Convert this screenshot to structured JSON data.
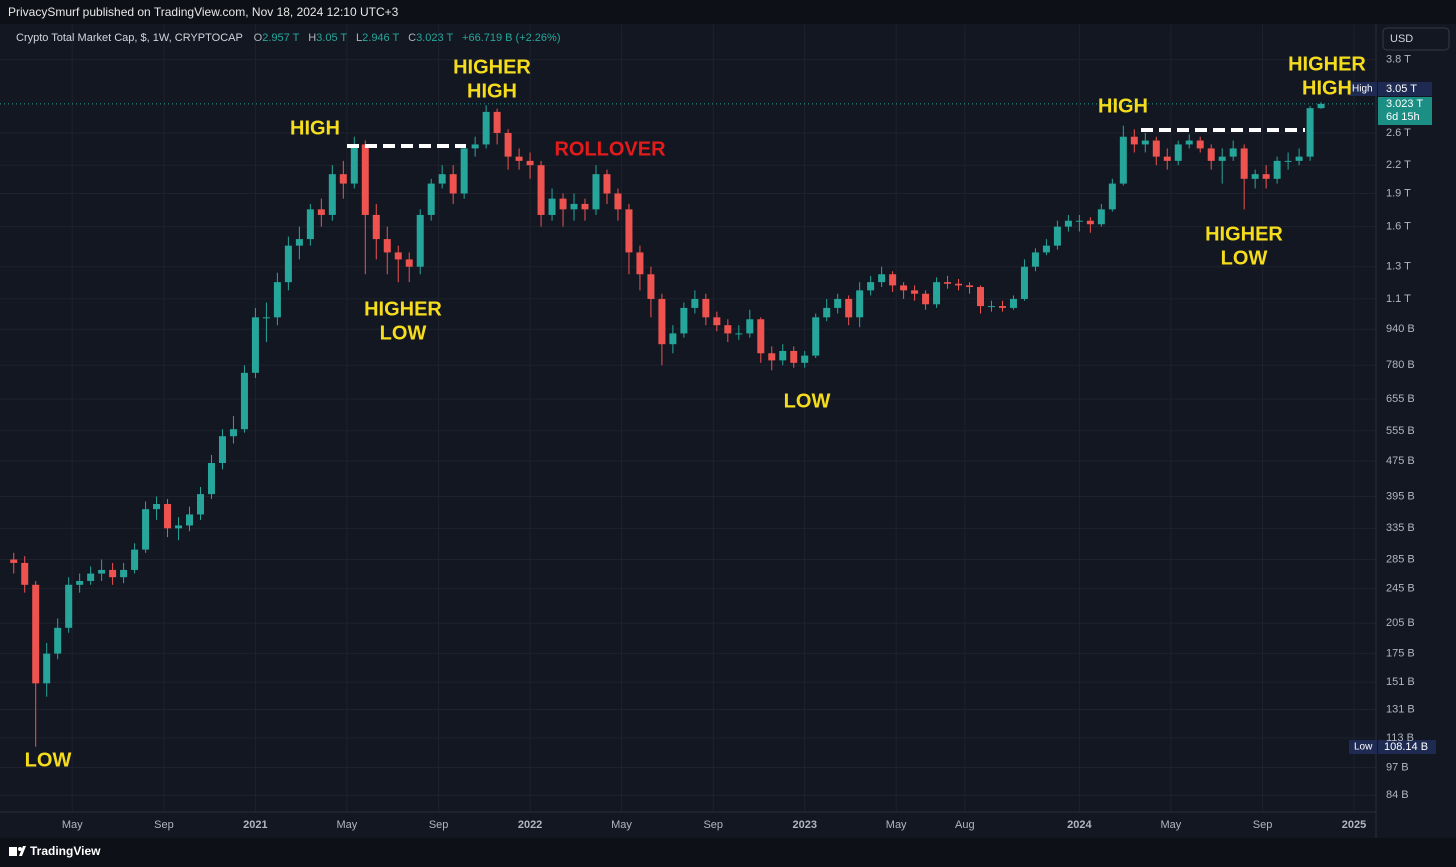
{
  "header": {
    "publisher": "PrivacySmurf published on TradingView.com, Nov 18, 2024 12:10 UTC+3",
    "currency": "USD",
    "brand": "TradingView"
  },
  "legend": {
    "symbol": "Crypto Total Market Cap, $, 1W, CRYPTOCAP",
    "ohlc": [
      {
        "label": "O",
        "value": "2.957 T"
      },
      {
        "label": "H",
        "value": "3.05 T"
      },
      {
        "label": "L",
        "value": "2.946 T"
      },
      {
        "label": "C",
        "value": "3.023 T"
      }
    ],
    "change": "+66.719 B (+2.26%)"
  },
  "price_badges": {
    "high_label": "High",
    "high_value": "3.05 T",
    "last_value": "3.023 T",
    "countdown": "6d 15h",
    "low_label": "Low",
    "low_value": "108.14 B"
  },
  "chart_data": {
    "type": "candlestick",
    "log_scale": true,
    "grid": true,
    "up_color": "#26a69a",
    "down_color": "#ef5350",
    "xlim": [
      2020.07,
      2025.08
    ],
    "ylim": [
      77,
      4550
    ],
    "xticks": [
      {
        "value": 2020.333,
        "label": "May"
      },
      {
        "value": 2020.667,
        "label": "Sep"
      },
      2021,
      {
        "value": 2021.333,
        "label": "May"
      },
      {
        "value": 2021.667,
        "label": "Sep"
      },
      2022,
      {
        "value": 2022.333,
        "label": "May"
      },
      {
        "value": 2022.667,
        "label": "Sep"
      },
      2023,
      {
        "value": 2023.333,
        "label": "May"
      },
      {
        "value": 2023.583,
        "label": "Aug"
      },
      2024,
      {
        "value": 2024.333,
        "label": "May"
      },
      {
        "value": 2024.667,
        "label": "Sep"
      },
      2025
    ],
    "yticks": [
      {
        "value": 3800,
        "label": "3.8 T"
      },
      {
        "value": 2600,
        "label": "2.6 T"
      },
      {
        "value": 2200,
        "label": "2.2 T"
      },
      {
        "value": 1900,
        "label": "1.9 T"
      },
      {
        "value": 1600,
        "label": "1.6 T"
      },
      {
        "value": 1300,
        "label": "1.3 T"
      },
      {
        "value": 1100,
        "label": "1.1 T"
      },
      {
        "value": 940,
        "label": "940 B"
      },
      {
        "value": 780,
        "label": "780 B"
      },
      {
        "value": 655,
        "label": "655 B"
      },
      {
        "value": 555,
        "label": "555 B"
      },
      {
        "value": 475,
        "label": "475 B"
      },
      {
        "value": 395,
        "label": "395 B"
      },
      {
        "value": 335,
        "label": "335 B"
      },
      {
        "value": 285,
        "label": "285 B"
      },
      {
        "value": 245,
        "label": "245 B"
      },
      {
        "value": 205,
        "label": "205 B"
      },
      {
        "value": 175,
        "label": "175 B"
      },
      {
        "value": 151,
        "label": "151 B"
      },
      {
        "value": 131,
        "label": "131 B"
      },
      {
        "value": 113,
        "label": "113 B"
      },
      {
        "value": 97,
        "label": "97 B"
      },
      {
        "value": 84,
        "label": "84 B"
      }
    ],
    "x": [
      2020.12,
      2020.16,
      2020.2,
      2020.24,
      2020.28,
      2020.32,
      2020.36,
      2020.4,
      2020.44,
      2020.48,
      2020.52,
      2020.56,
      2020.6,
      2020.64,
      2020.68,
      2020.72,
      2020.76,
      2020.8,
      2020.84,
      2020.88,
      2020.92,
      2020.96,
      2021.0,
      2021.04,
      2021.08,
      2021.12,
      2021.16,
      2021.2,
      2021.24,
      2021.28,
      2021.32,
      2021.36,
      2021.4,
      2021.44,
      2021.48,
      2021.52,
      2021.56,
      2021.6,
      2021.64,
      2021.68,
      2021.72,
      2021.76,
      2021.8,
      2021.84,
      2021.88,
      2021.92,
      2021.96,
      2022.0,
      2022.04,
      2022.08,
      2022.12,
      2022.16,
      2022.2,
      2022.24,
      2022.28,
      2022.32,
      2022.36,
      2022.4,
      2022.44,
      2022.48,
      2022.52,
      2022.56,
      2022.6,
      2022.64,
      2022.68,
      2022.72,
      2022.76,
      2022.8,
      2022.84,
      2022.88,
      2022.92,
      2022.96,
      2023.0,
      2023.04,
      2023.08,
      2023.12,
      2023.16,
      2023.2,
      2023.24,
      2023.28,
      2023.32,
      2023.36,
      2023.4,
      2023.44,
      2023.48,
      2023.52,
      2023.56,
      2023.6,
      2023.64,
      2023.68,
      2023.72,
      2023.76,
      2023.8,
      2023.84,
      2023.88,
      2023.92,
      2023.96,
      2024.0,
      2024.04,
      2024.08,
      2024.12,
      2024.16,
      2024.2,
      2024.24,
      2024.28,
      2024.32,
      2024.36,
      2024.4,
      2024.44,
      2024.48,
      2024.52,
      2024.56,
      2024.6,
      2024.64,
      2024.68,
      2024.72,
      2024.76,
      2024.8,
      2024.84,
      2024.88
    ],
    "open": [
      285,
      280,
      250,
      150,
      175,
      200,
      250,
      255,
      265,
      270,
      260,
      270,
      300,
      370,
      380,
      335,
      340,
      360,
      400,
      470,
      540,
      560,
      750,
      1000,
      1000,
      1200,
      1450,
      1500,
      1750,
      1700,
      2100,
      2000,
      2450,
      1700,
      1500,
      1400,
      1350,
      1300,
      1700,
      2000,
      2100,
      1900,
      2400,
      2450,
      2900,
      2600,
      2300,
      2250,
      2200,
      1700,
      1850,
      1750,
      1800,
      1750,
      2100,
      1900,
      1750,
      1400,
      1250,
      1100,
      870,
      920,
      1050,
      1100,
      1000,
      960,
      920,
      920,
      990,
      830,
      800,
      840,
      790,
      820,
      1000,
      1050,
      1100,
      1000,
      1150,
      1200,
      1250,
      1180,
      1150,
      1130,
      1070,
      1200,
      1190,
      1180,
      1170,
      1060,
      1060,
      1050,
      1100,
      1300,
      1400,
      1450,
      1600,
      1650,
      1650,
      1620,
      1750,
      2000,
      2550,
      2450,
      2500,
      2300,
      2250,
      2450,
      2500,
      2400,
      2250,
      2300,
      2400,
      2050,
      2100,
      2050,
      2250,
      2250,
      2300,
      2957
    ],
    "high": [
      295,
      290,
      255,
      185,
      210,
      260,
      265,
      275,
      285,
      280,
      280,
      310,
      385,
      395,
      390,
      355,
      375,
      415,
      490,
      560,
      600,
      780,
      1050,
      1080,
      1260,
      1520,
      1600,
      1800,
      1850,
      2200,
      2250,
      2550,
      2500,
      1800,
      1600,
      1450,
      1400,
      1750,
      2050,
      2200,
      2200,
      2450,
      2550,
      3000,
      2950,
      2650,
      2400,
      2350,
      2250,
      1950,
      1900,
      1900,
      1850,
      2200,
      2150,
      1950,
      1800,
      1450,
      1300,
      1130,
      960,
      1080,
      1150,
      1130,
      1030,
      990,
      960,
      1040,
      1000,
      860,
      870,
      860,
      840,
      1020,
      1100,
      1130,
      1120,
      1200,
      1240,
      1300,
      1270,
      1200,
      1180,
      1150,
      1230,
      1240,
      1220,
      1200,
      1180,
      1090,
      1090,
      1120,
      1350,
      1430,
      1500,
      1650,
      1700,
      1700,
      1680,
      1800,
      2050,
      2700,
      2650,
      2600,
      2550,
      2400,
      2500,
      2580,
      2550,
      2450,
      2400,
      2500,
      2450,
      2150,
      2200,
      2300,
      2350,
      2400,
      2990,
      3050
    ],
    "low": [
      265,
      240,
      108,
      140,
      170,
      195,
      240,
      250,
      255,
      250,
      252,
      265,
      295,
      350,
      320,
      315,
      330,
      350,
      390,
      455,
      520,
      550,
      730,
      880,
      960,
      1150,
      1350,
      1450,
      1600,
      1650,
      1850,
      1950,
      1250,
      1350,
      1250,
      1200,
      1200,
      1250,
      1650,
      1950,
      1800,
      1850,
      2300,
      2400,
      2450,
      2150,
      2150,
      2050,
      1600,
      1650,
      1600,
      1650,
      1650,
      1700,
      1800,
      1650,
      1250,
      1150,
      1000,
      780,
      830,
      900,
      1020,
      960,
      930,
      880,
      890,
      900,
      790,
      760,
      780,
      770,
      770,
      810,
      980,
      1020,
      960,
      950,
      1120,
      1170,
      1140,
      1100,
      1090,
      1040,
      1050,
      1160,
      1150,
      1130,
      1020,
      1030,
      1030,
      1040,
      1090,
      1270,
      1380,
      1420,
      1560,
      1560,
      1550,
      1600,
      1730,
      1980,
      2350,
      2350,
      2200,
      2150,
      2200,
      2400,
      2350,
      2150,
      2000,
      2250,
      1750,
      1950,
      1950,
      2000,
      2150,
      2200,
      2250,
      2946
    ],
    "close": [
      280,
      250,
      150,
      175,
      200,
      250,
      255,
      265,
      270,
      260,
      270,
      300,
      370,
      380,
      335,
      340,
      360,
      400,
      470,
      540,
      560,
      750,
      1000,
      1000,
      1200,
      1450,
      1500,
      1750,
      1700,
      2100,
      2000,
      2450,
      1700,
      1500,
      1400,
      1350,
      1300,
      1700,
      2000,
      2100,
      1900,
      2400,
      2450,
      2900,
      2600,
      2300,
      2250,
      2200,
      1700,
      1850,
      1750,
      1800,
      1750,
      2100,
      1900,
      1750,
      1400,
      1250,
      1100,
      870,
      920,
      1050,
      1100,
      1000,
      960,
      920,
      920,
      990,
      830,
      800,
      840,
      790,
      820,
      1000,
      1050,
      1100,
      1000,
      1150,
      1200,
      1250,
      1180,
      1150,
      1130,
      1070,
      1200,
      1190,
      1180,
      1170,
      1060,
      1060,
      1050,
      1100,
      1300,
      1400,
      1450,
      1600,
      1650,
      1650,
      1620,
      1750,
      2000,
      2550,
      2450,
      2500,
      2300,
      2250,
      2450,
      2500,
      2400,
      2250,
      2300,
      2400,
      2050,
      2100,
      2050,
      2250,
      2250,
      2300,
      2957,
      3023
    ],
    "annotations": [
      {
        "lines": [
          "LOW"
        ],
        "color": "#f5dd1d"
      },
      {
        "lines": [
          "HIGH"
        ],
        "color": "#f5dd1d"
      },
      {
        "lines": [
          "HIGHER",
          "LOW"
        ],
        "color": "#f5dd1d"
      },
      {
        "lines": [
          "HIGHER",
          "HIGH"
        ],
        "color": "#f5dd1d"
      },
      {
        "lines": [
          "ROLLOVER"
        ],
        "color": "#e31b1b"
      },
      {
        "lines": [
          "LOW"
        ],
        "color": "#f5dd1d"
      },
      {
        "lines": [
          "HIGH"
        ],
        "color": "#f5dd1d"
      },
      {
        "lines": [
          "HIGHER",
          "LOW"
        ],
        "color": "#f5dd1d"
      },
      {
        "lines": [
          "HIGHER",
          "HIGH"
        ],
        "color": "#f5dd1d"
      }
    ]
  }
}
